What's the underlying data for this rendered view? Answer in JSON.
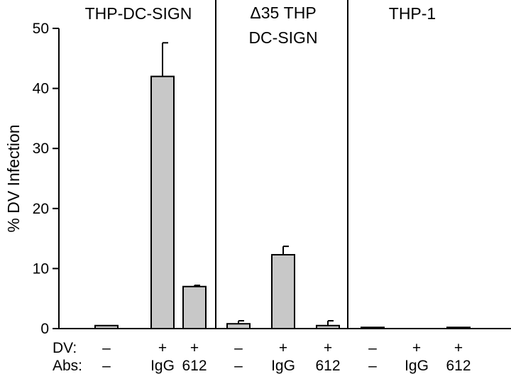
{
  "chart_data": {
    "type": "bar",
    "ylabel": "% DV Infection",
    "ylim": [
      0,
      50
    ],
    "yticks": [
      0,
      10,
      20,
      30,
      40,
      50
    ],
    "bar_color": "#c8c8c8",
    "groups": [
      {
        "label_lines": [
          "THP-DC-SIGN"
        ],
        "bars": [
          {
            "dv": "–",
            "abs": "–",
            "value": 0.5,
            "error": 0
          },
          {
            "dv": "+",
            "abs": "IgG",
            "value": 42.0,
            "error": 5.6
          },
          {
            "dv": "+",
            "abs": "612",
            "value": 7.0,
            "error": 0.2
          }
        ]
      },
      {
        "label_lines": [
          "Δ35 THP",
          "DC-SIGN"
        ],
        "bars": [
          {
            "dv": "–",
            "abs": "–",
            "value": 0.8,
            "error": 0.5
          },
          {
            "dv": "+",
            "abs": "IgG",
            "value": 12.3,
            "error": 1.4
          },
          {
            "dv": "+",
            "abs": "612",
            "value": 0.5,
            "error": 0.8
          }
        ]
      },
      {
        "label_lines": [
          "THP-1"
        ],
        "bars": [
          {
            "dv": "–",
            "abs": "–",
            "value": 0.2,
            "error": 0
          },
          {
            "dv": "+",
            "abs": "IgG",
            "value": 0.0,
            "error": 0
          },
          {
            "dv": "+",
            "abs": "612",
            "value": 0.2,
            "error": 0
          }
        ]
      }
    ],
    "row_labels": {
      "dv": "DV:",
      "abs": "Abs:"
    }
  }
}
